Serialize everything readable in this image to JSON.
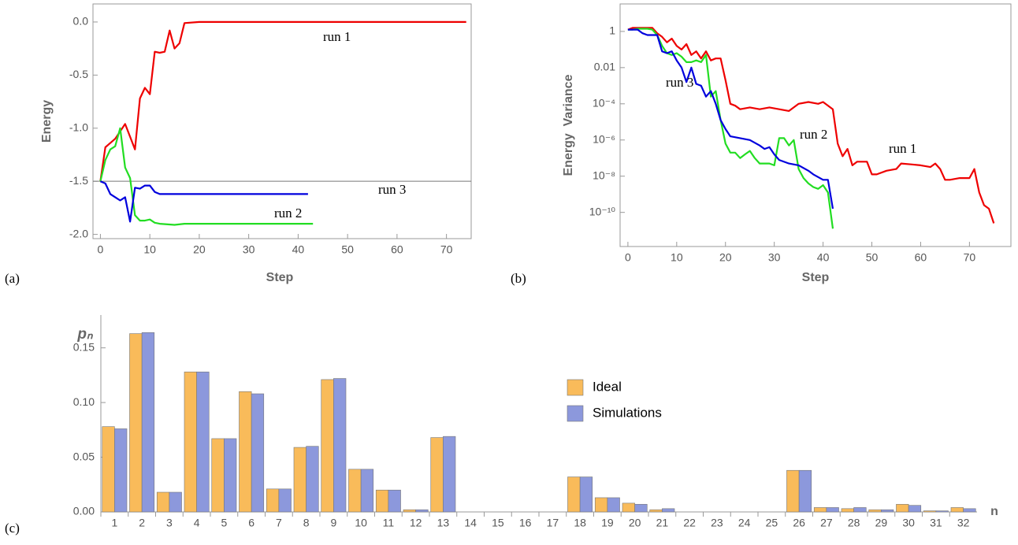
{
  "chart_data": [
    {
      "type": "line",
      "panel_label": "(a)",
      "xlabel": "Step",
      "ylabel": "Energy",
      "xlim": [
        -1.5,
        75
      ],
      "ylim": [
        -2.04,
        0.17
      ],
      "xticks": [
        0,
        10,
        20,
        30,
        40,
        50,
        60,
        70
      ],
      "yticks": [
        {
          "value": -2.0,
          "label": "-2.0"
        },
        {
          "value": -1.5,
          "label": "-1.5"
        },
        {
          "value": -1.0,
          "label": "-1.0"
        },
        {
          "value": -0.5,
          "label": "-0.5"
        },
        {
          "value": 0.0,
          "label": "0.0"
        }
      ],
      "reference_line": -1.5,
      "series": [
        {
          "name": "run 1",
          "color": "#ee0000",
          "x": [
            0,
            1,
            2,
            3,
            4,
            5,
            6,
            7,
            8,
            9,
            10,
            11,
            12,
            13,
            14,
            15,
            16,
            17,
            20,
            74
          ],
          "values": [
            -1.5,
            -1.18,
            -1.14,
            -1.1,
            -1.03,
            -0.96,
            -1.08,
            -1.2,
            -0.72,
            -0.62,
            -0.68,
            -0.28,
            -0.29,
            -0.28,
            -0.08,
            -0.25,
            -0.2,
            -0.01,
            0,
            0
          ]
        },
        {
          "name": "run 2",
          "color": "#22dd22",
          "x": [
            0,
            1,
            2,
            3,
            4,
            5,
            6,
            7,
            8,
            9,
            10,
            11,
            12,
            15,
            17,
            43
          ],
          "values": [
            -1.5,
            -1.3,
            -1.2,
            -1.17,
            -1.0,
            -1.37,
            -1.47,
            -1.82,
            -1.87,
            -1.87,
            -1.86,
            -1.89,
            -1.9,
            -1.91,
            -1.9,
            -1.9
          ]
        },
        {
          "name": "run 3",
          "color": "#0000dd",
          "x": [
            0,
            1,
            2,
            3,
            4,
            5,
            6,
            7,
            8,
            9,
            10,
            11,
            12,
            13,
            42
          ],
          "values": [
            -1.5,
            -1.52,
            -1.62,
            -1.65,
            -1.68,
            -1.65,
            -1.88,
            -1.56,
            -1.57,
            -1.54,
            -1.54,
            -1.6,
            -1.62,
            -1.62,
            -1.62
          ]
        }
      ]
    },
    {
      "type": "line",
      "panel_label": "(b)",
      "xlabel": "Step",
      "ylabel": "Energy  Variance",
      "yscale": "log",
      "xlim": [
        -1.6,
        78.5
      ],
      "ylim": [
        1.3e-12,
        33
      ],
      "xticks": [
        0,
        10,
        20,
        30,
        40,
        50,
        60,
        70
      ],
      "yticks": [
        1,
        0.01,
        {
          "value": 0.0001,
          "label": "10⁻⁴"
        },
        {
          "value": 1e-06,
          "label": "10⁻⁶"
        },
        {
          "value": 1e-08,
          "label": "10⁻⁸"
        },
        {
          "value": 1e-10,
          "label": "10⁻¹⁰"
        }
      ],
      "series": [
        {
          "name": "run 1",
          "color": "#ee0000",
          "x": [
            0,
            1,
            2,
            3,
            4,
            5,
            6,
            7,
            8,
            9,
            10,
            11,
            12,
            13,
            14,
            15,
            16,
            17,
            18,
            19,
            20,
            21,
            22,
            23,
            25,
            27,
            29,
            31,
            33,
            35,
            37,
            39,
            40,
            42,
            43,
            44,
            45,
            46,
            47,
            49,
            50,
            51,
            53,
            55,
            56,
            58,
            60,
            62,
            63,
            64,
            65,
            66,
            68,
            70,
            71,
            72,
            73,
            74,
            75
          ],
          "values": [
            1.26,
            1.58,
            1.58,
            1.58,
            1.58,
            1.58,
            0.79,
            0.5,
            0.25,
            0.4,
            0.16,
            0.1,
            0.2,
            0.05,
            0.079,
            0.032,
            0.079,
            0.025,
            0.032,
            0.032,
            0.002,
            0.0001,
            7.9e-05,
            5e-05,
            6.3e-05,
            5e-05,
            6.3e-05,
            5e-05,
            4e-05,
            0.0001,
            0.000126,
            0.0001,
            0.000126,
            5e-05,
            6.3e-07,
            1.26e-07,
            3.2e-07,
            4e-08,
            6.3e-08,
            6.3e-08,
            1.26e-08,
            1.26e-08,
            2e-08,
            2.5e-08,
            5e-08,
            4.5e-08,
            4e-08,
            3.2e-08,
            5e-08,
            2.5e-08,
            6.3e-09,
            6.3e-09,
            7.9e-09,
            7.9e-09,
            2.5e-08,
            1.26e-09,
            2.5e-10,
            1.6e-10,
            2.5e-11
          ]
        },
        {
          "name": "run 2",
          "color": "#22dd22",
          "x": [
            0,
            1,
            2,
            3,
            4,
            5,
            6,
            7,
            8,
            9,
            10,
            11,
            12,
            13,
            14,
            15,
            16,
            17,
            18,
            19,
            20,
            21,
            22,
            23,
            24,
            25,
            26,
            27,
            28,
            29,
            30,
            31,
            32,
            33,
            34,
            35,
            36,
            37,
            38,
            39,
            40,
            41,
            42
          ],
          "values": [
            1.26,
            1.26,
            1.41,
            1.41,
            1.41,
            1.26,
            0.63,
            0.16,
            0.063,
            0.05,
            0.063,
            0.04,
            0.02,
            0.02,
            0.025,
            0.02,
            0.05,
            0.00025,
            0.0005,
            1.26e-05,
            6.3e-07,
            2e-07,
            2e-07,
            1e-07,
            1.6e-07,
            2.5e-07,
            1e-07,
            5e-08,
            5e-08,
            5e-08,
            4e-08,
            1.26e-06,
            1.26e-06,
            5e-07,
            1e-06,
            2.5e-08,
            7.9e-09,
            4e-09,
            2.5e-09,
            2e-09,
            3.2e-09,
            1.26e-09,
            1.26e-11
          ]
        },
        {
          "name": "run 3",
          "color": "#0000dd",
          "x": [
            0,
            1,
            2,
            3,
            4,
            5,
            6,
            7,
            8,
            9,
            10,
            11,
            12,
            13,
            14,
            15,
            16,
            17,
            18,
            19,
            20,
            21,
            23,
            25,
            27,
            28,
            29,
            30,
            31,
            33,
            35,
            37,
            38,
            40,
            41,
            42
          ],
          "values": [
            1.26,
            1.26,
            1.26,
            0.79,
            0.63,
            0.63,
            0.63,
            0.079,
            0.063,
            0.079,
            0.025,
            0.01,
            0.0016,
            0.01,
            0.00126,
            0.001,
            0.00025,
            0.0005,
            0.0001,
            1.26e-05,
            4e-06,
            1.6e-06,
            1.26e-06,
            1e-06,
            5e-07,
            3.2e-07,
            4e-07,
            1.6e-07,
            7.9e-08,
            5e-08,
            4e-08,
            2e-08,
            1.26e-08,
            6.3e-09,
            6.3e-09,
            1.6e-10
          ]
        }
      ]
    },
    {
      "type": "bar",
      "panel_label": "(c)",
      "xlabel": "n",
      "ylabel": "pₙ",
      "legend": "center",
      "ylim": [
        0,
        0.18
      ],
      "yticks": [
        {
          "value": 0,
          "label": "0.00"
        },
        {
          "value": 0.05,
          "label": "0.05"
        },
        {
          "value": 0.1,
          "label": "0.10"
        },
        {
          "value": 0.15,
          "label": "0.15"
        }
      ],
      "categories": [
        "1",
        "2",
        "3",
        "4",
        "5",
        "6",
        "7",
        "8",
        "9",
        "10",
        "11",
        "12",
        "13",
        "14",
        "15",
        "16",
        "17",
        "18",
        "19",
        "20",
        "21",
        "22",
        "23",
        "24",
        "25",
        "26",
        "27",
        "28",
        "29",
        "30",
        "31",
        "32"
      ],
      "series": [
        {
          "name": "Ideal",
          "color": "#f9bb5a",
          "values": [
            0.078,
            0.163,
            0.018,
            0.128,
            0.067,
            0.11,
            0.021,
            0.059,
            0.121,
            0.039,
            0.02,
            0.002,
            0.068,
            0,
            0,
            0,
            0,
            0.032,
            0.013,
            0.008,
            0.002,
            0,
            0,
            0,
            0,
            0.038,
            0.004,
            0.003,
            0.002,
            0.007,
            0.001,
            0.004
          ]
        },
        {
          "name": "Simulations",
          "color": "#8c98dc",
          "values": [
            0.076,
            0.164,
            0.018,
            0.128,
            0.067,
            0.108,
            0.021,
            0.06,
            0.122,
            0.039,
            0.02,
            0.002,
            0.069,
            0,
            0,
            0,
            0,
            0.032,
            0.013,
            0.007,
            0.003,
            0,
            0,
            0,
            0,
            0.038,
            0.004,
            0.004,
            0.002,
            0.006,
            0.001,
            0.003
          ]
        }
      ]
    }
  ]
}
